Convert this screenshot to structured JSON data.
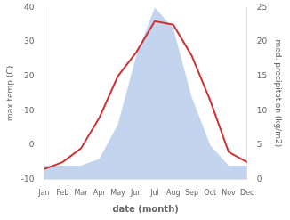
{
  "chart_data": {
    "type": "line",
    "xlabel": "date (month)",
    "ylabel": "max temp (C)",
    "y2label": "med. precipitation (kg/m2)",
    "categories": [
      "Jan",
      "Feb",
      "Mar",
      "Apr",
      "May",
      "Jun",
      "Jul",
      "Aug",
      "Sep",
      "Oct",
      "Nov",
      "Dec"
    ],
    "series": [
      {
        "type": "area",
        "axis": "y2",
        "color": "#aec6e8",
        "values": [
          2,
          2,
          2,
          3,
          8,
          18,
          25,
          22,
          12,
          5,
          2,
          2
        ]
      },
      {
        "type": "line",
        "axis": "y",
        "color": "#cc3333",
        "values": [
          -7,
          -5,
          -1,
          8,
          20,
          27,
          36,
          35,
          26,
          13,
          -2,
          -5
        ]
      }
    ],
    "ylim": [
      -10,
      40
    ],
    "yticks": [
      -10,
      0,
      10,
      20,
      30,
      40
    ],
    "y2lim": [
      0,
      25
    ],
    "y2ticks": [
      0,
      5,
      10,
      15,
      20,
      25
    ],
    "grid": false
  }
}
